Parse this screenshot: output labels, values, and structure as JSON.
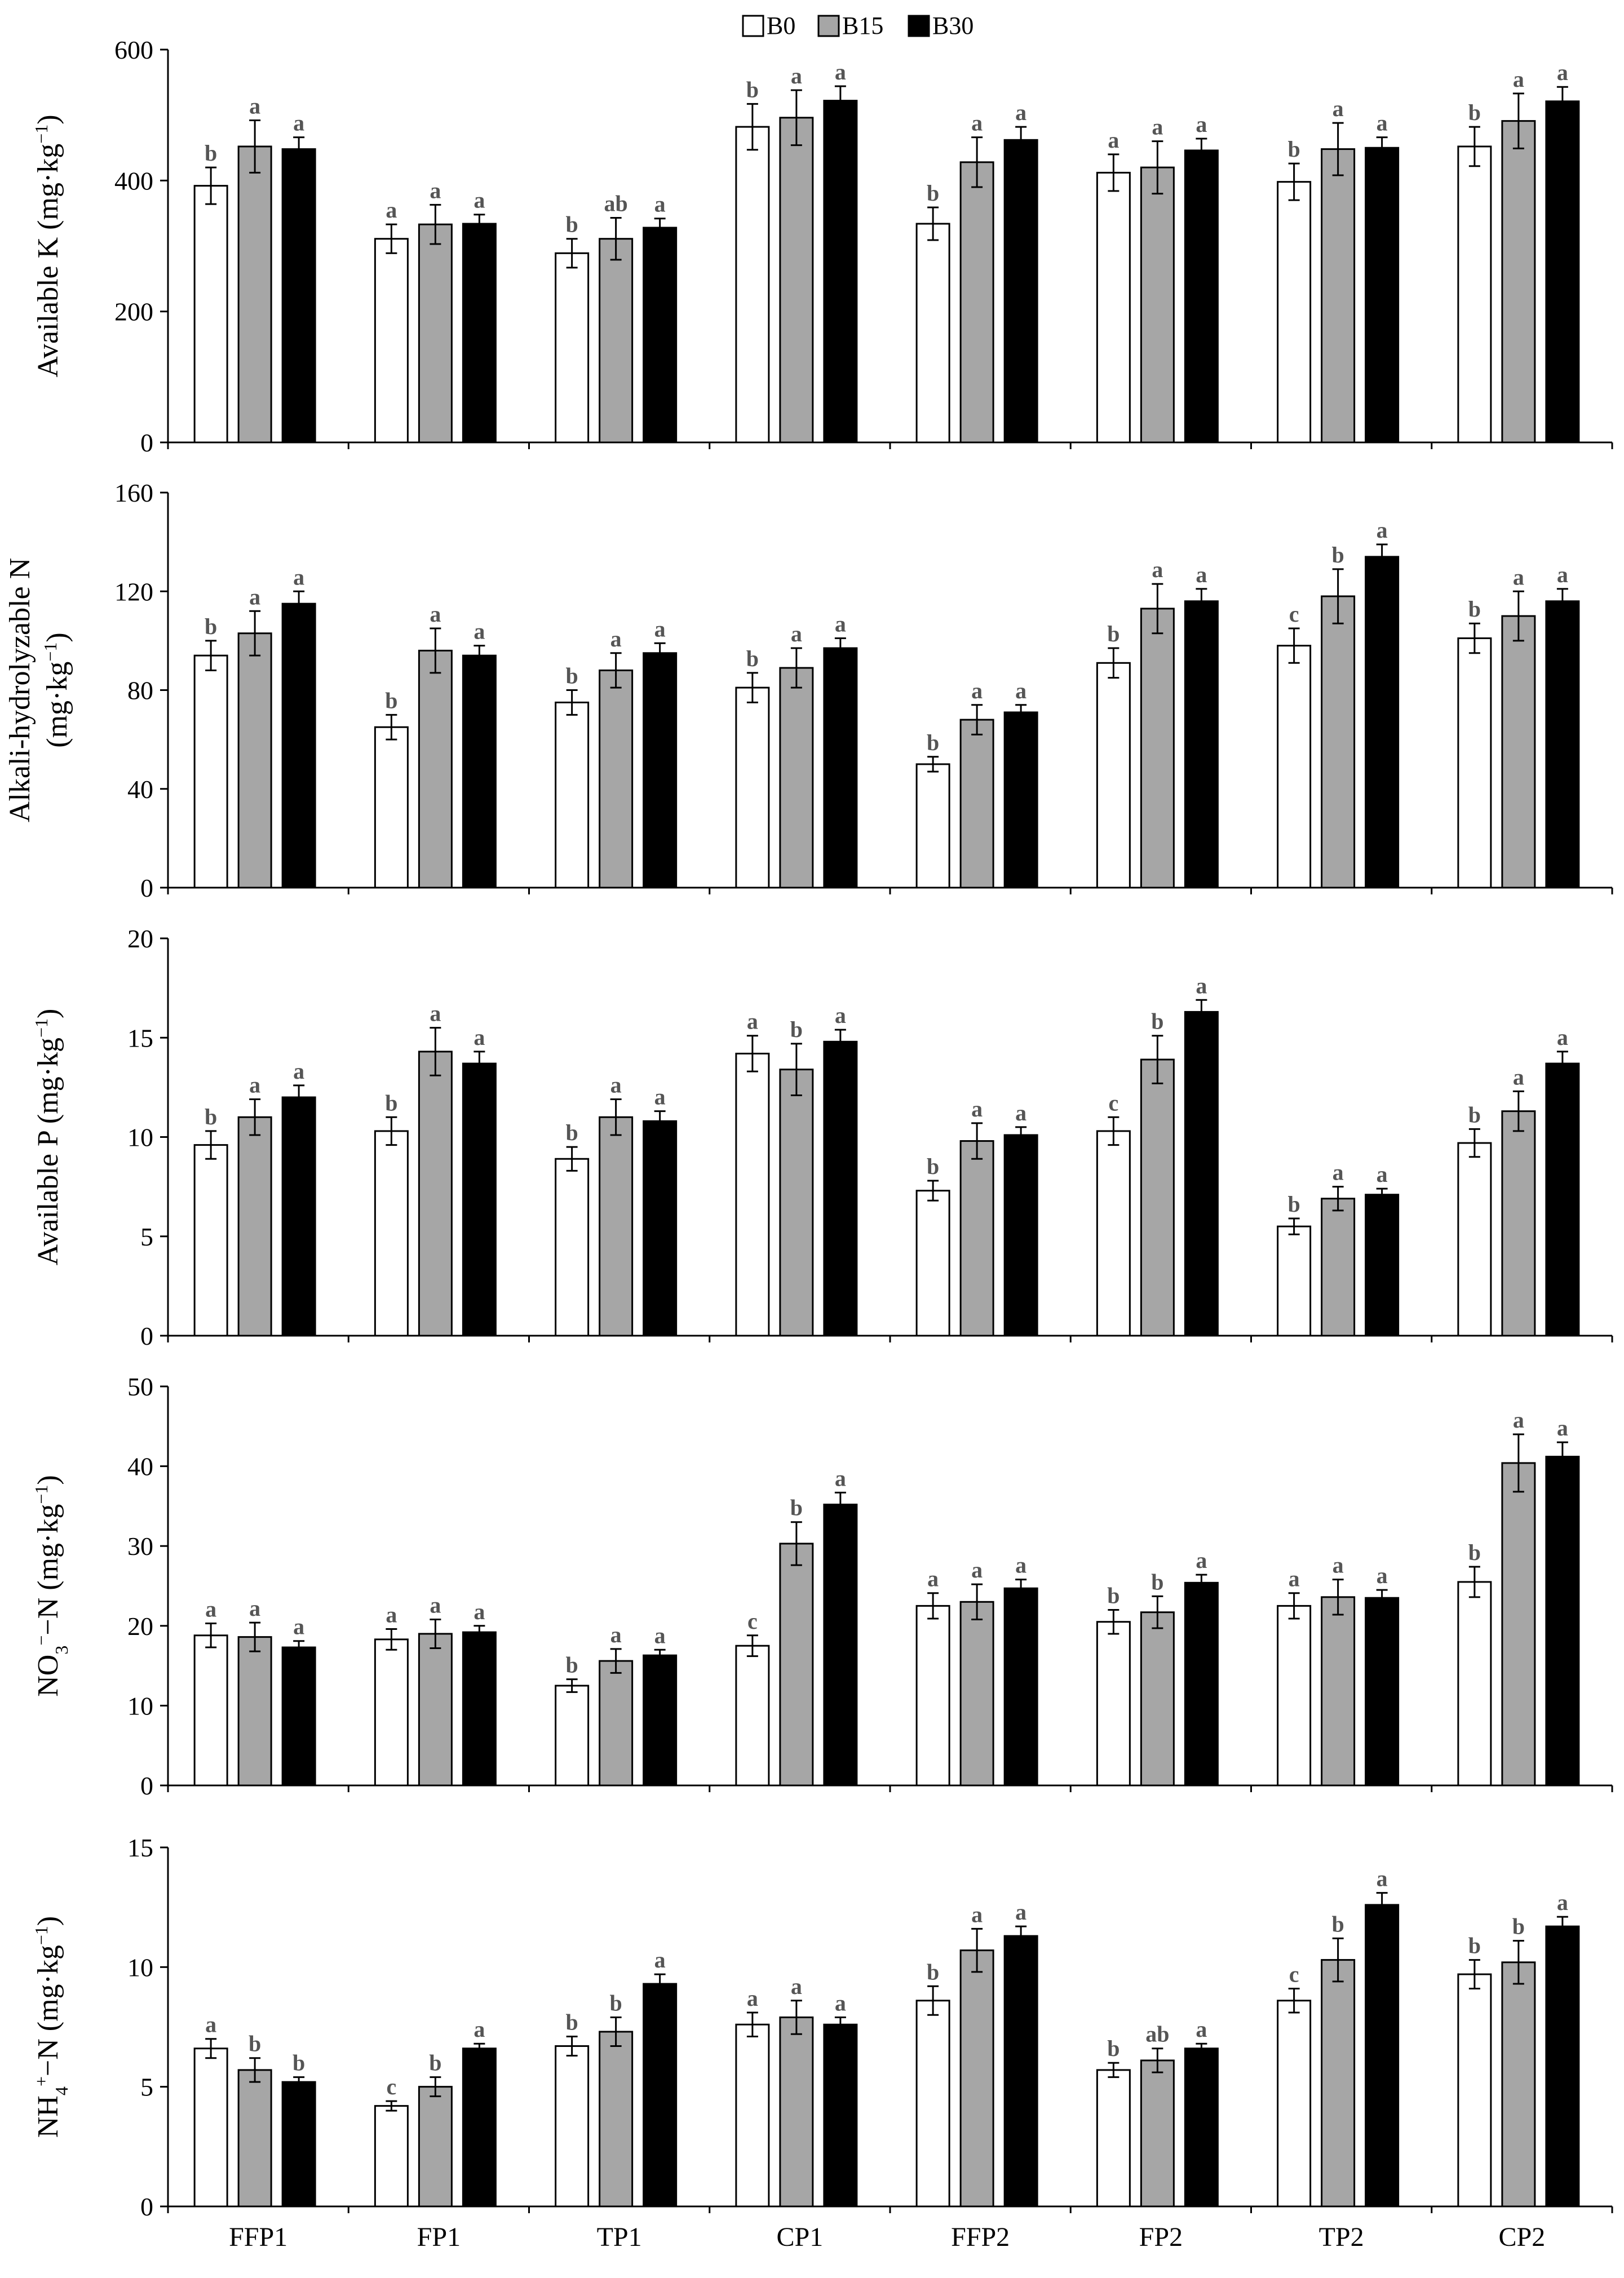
{
  "chart_data": {
    "type": "bar",
    "title": "",
    "categories": [
      "FFP1",
      "FP1",
      "TP1",
      "CP1",
      "FFP2",
      "FP2",
      "TP2",
      "CP2"
    ],
    "legend": {
      "position": "top-center",
      "entries": [
        {
          "name": "B0",
          "color": "#ffffff"
        },
        {
          "name": "B15",
          "color": "#a6a6a6"
        },
        {
          "name": "B30",
          "color": "#000000"
        }
      ]
    },
    "panels": [
      {
        "id": "available-k",
        "ylabel_parts": [
          "Available K (mg·kg",
          "−1",
          ")"
        ],
        "ylim": [
          0,
          600
        ],
        "yticks": [
          0,
          200,
          400,
          600
        ],
        "series": [
          {
            "name": "B0",
            "values": [
              392,
              311,
              289,
              482,
              334,
              412,
              398,
              452
            ],
            "errors": [
              28,
              22,
              22,
              35,
              25,
              28,
              28,
              30
            ],
            "letters": [
              "b",
              "a",
              "b",
              "b",
              "b",
              "a",
              "b",
              "b"
            ]
          },
          {
            "name": "B15",
            "values": [
              452,
              333,
              311,
              496,
              428,
              420,
              448,
              491
            ],
            "errors": [
              40,
              30,
              32,
              42,
              38,
              40,
              40,
              42
            ],
            "letters": [
              "a",
              "a",
              "ab",
              "a",
              "a",
              "a",
              "a",
              "a"
            ]
          },
          {
            "name": "B30",
            "values": [
              448,
              334,
              328,
              522,
              462,
              446,
              450,
              521
            ],
            "errors": [
              18,
              14,
              14,
              22,
              20,
              18,
              16,
              22
            ],
            "letters": [
              "a",
              "a",
              "a",
              "a",
              "a",
              "a",
              "a",
              "a"
            ]
          }
        ]
      },
      {
        "id": "alkali-n",
        "ylabel_parts": [
          "Alkali-hydrolyzable N",
          "(mg·kg",
          "−1",
          ")"
        ],
        "ylim": [
          0,
          160
        ],
        "yticks": [
          0,
          40,
          80,
          120,
          160
        ],
        "series": [
          {
            "name": "B0",
            "values": [
              94,
              65,
              75,
              81,
              50,
              91,
              98,
              101
            ],
            "errors": [
              6,
              5,
              5,
              6,
              3,
              6,
              7,
              6
            ],
            "letters": [
              "b",
              "b",
              "b",
              "b",
              "b",
              "b",
              "c",
              "b"
            ]
          },
          {
            "name": "B15",
            "values": [
              103,
              96,
              88,
              89,
              68,
              113,
              118,
              110
            ],
            "errors": [
              9,
              9,
              7,
              8,
              6,
              10,
              11,
              10
            ],
            "letters": [
              "a",
              "a",
              "a",
              "a",
              "a",
              "a",
              "b",
              "a"
            ]
          },
          {
            "name": "B30",
            "values": [
              115,
              94,
              95,
              97,
              71,
              116,
              134,
              116
            ],
            "errors": [
              5,
              4,
              4,
              4,
              3,
              5,
              5,
              5
            ],
            "letters": [
              "a",
              "a",
              "a",
              "a",
              "a",
              "a",
              "a",
              "a"
            ]
          }
        ]
      },
      {
        "id": "available-p",
        "ylabel_parts": [
          "Available P (mg·kg",
          "−1",
          ")"
        ],
        "ylim": [
          0,
          20
        ],
        "yticks": [
          0,
          5,
          10,
          15,
          20
        ],
        "series": [
          {
            "name": "B0",
            "values": [
              9.6,
              10.3,
              8.9,
              14.2,
              7.3,
              10.3,
              5.5,
              9.7
            ],
            "errors": [
              0.7,
              0.7,
              0.6,
              0.9,
              0.5,
              0.7,
              0.4,
              0.7
            ],
            "letters": [
              "b",
              "b",
              "b",
              "a",
              "b",
              "c",
              "b",
              "b"
            ]
          },
          {
            "name": "B15",
            "values": [
              11.0,
              14.3,
              11.0,
              13.4,
              9.8,
              13.9,
              6.9,
              11.3
            ],
            "errors": [
              0.9,
              1.2,
              0.9,
              1.3,
              0.9,
              1.2,
              0.6,
              1.0
            ],
            "letters": [
              "a",
              "a",
              "a",
              "b",
              "a",
              "b",
              "a",
              "a"
            ]
          },
          {
            "name": "B30",
            "values": [
              12.0,
              13.7,
              10.8,
              14.8,
              10.1,
              16.3,
              7.1,
              13.7
            ],
            "errors": [
              0.6,
              0.6,
              0.5,
              0.6,
              0.4,
              0.6,
              0.3,
              0.6
            ],
            "letters": [
              "a",
              "a",
              "a",
              "a",
              "a",
              "a",
              "a",
              "a"
            ]
          }
        ]
      },
      {
        "id": "no3-n",
        "ylabel_parts": [
          "NO",
          "3",
          "−",
          "−N (mg·kg",
          "−1",
          ")"
        ],
        "ylim": [
          0,
          50
        ],
        "yticks": [
          0,
          10,
          20,
          30,
          40,
          50
        ],
        "series": [
          {
            "name": "B0",
            "values": [
              18.8,
              18.3,
              12.5,
              17.5,
              22.5,
              20.5,
              22.5,
              25.5
            ],
            "errors": [
              1.5,
              1.3,
              0.8,
              1.3,
              1.6,
              1.5,
              1.6,
              1.9
            ],
            "letters": [
              "a",
              "a",
              "b",
              "c",
              "a",
              "b",
              "a",
              "b"
            ]
          },
          {
            "name": "B15",
            "values": [
              18.6,
              19.0,
              15.6,
              30.3,
              23.0,
              21.7,
              23.6,
              40.4
            ],
            "errors": [
              1.8,
              1.8,
              1.5,
              2.7,
              2.2,
              2.0,
              2.2,
              3.6
            ],
            "letters": [
              "a",
              "a",
              "a",
              "b",
              "a",
              "b",
              "a",
              "a"
            ]
          },
          {
            "name": "B30",
            "values": [
              17.3,
              19.2,
              16.3,
              35.2,
              24.7,
              25.4,
              23.5,
              41.2
            ],
            "errors": [
              0.8,
              0.8,
              0.7,
              1.5,
              1.1,
              1.0,
              1.0,
              1.8
            ],
            "letters": [
              "a",
              "a",
              "a",
              "a",
              "a",
              "a",
              "a",
              "a"
            ]
          }
        ]
      },
      {
        "id": "nh4-n",
        "ylabel_parts": [
          "NH",
          "4",
          "+",
          "−N (mg·kg",
          "−1",
          ")"
        ],
        "ylim": [
          0,
          15
        ],
        "yticks": [
          0,
          5,
          10,
          15
        ],
        "series": [
          {
            "name": "B0",
            "values": [
              6.6,
              4.2,
              6.7,
              7.6,
              8.6,
              5.7,
              8.6,
              9.7
            ],
            "errors": [
              0.4,
              0.2,
              0.4,
              0.5,
              0.6,
              0.3,
              0.5,
              0.6
            ],
            "letters": [
              "a",
              "c",
              "b",
              "a",
              "b",
              "b",
              "c",
              "b"
            ]
          },
          {
            "name": "B15",
            "values": [
              5.7,
              5.0,
              7.3,
              7.9,
              10.7,
              6.1,
              10.3,
              10.2
            ],
            "errors": [
              0.5,
              0.4,
              0.6,
              0.7,
              0.9,
              0.5,
              0.9,
              0.9
            ],
            "letters": [
              "b",
              "b",
              "b",
              "a",
              "a",
              "ab",
              "b",
              "b"
            ]
          },
          {
            "name": "B30",
            "values": [
              5.2,
              6.6,
              9.3,
              7.6,
              11.3,
              6.6,
              12.6,
              11.7
            ],
            "errors": [
              0.2,
              0.2,
              0.4,
              0.3,
              0.4,
              0.2,
              0.5,
              0.4
            ],
            "letters": [
              "b",
              "a",
              "a",
              "a",
              "a",
              "a",
              "a",
              "a"
            ]
          }
        ]
      }
    ]
  }
}
